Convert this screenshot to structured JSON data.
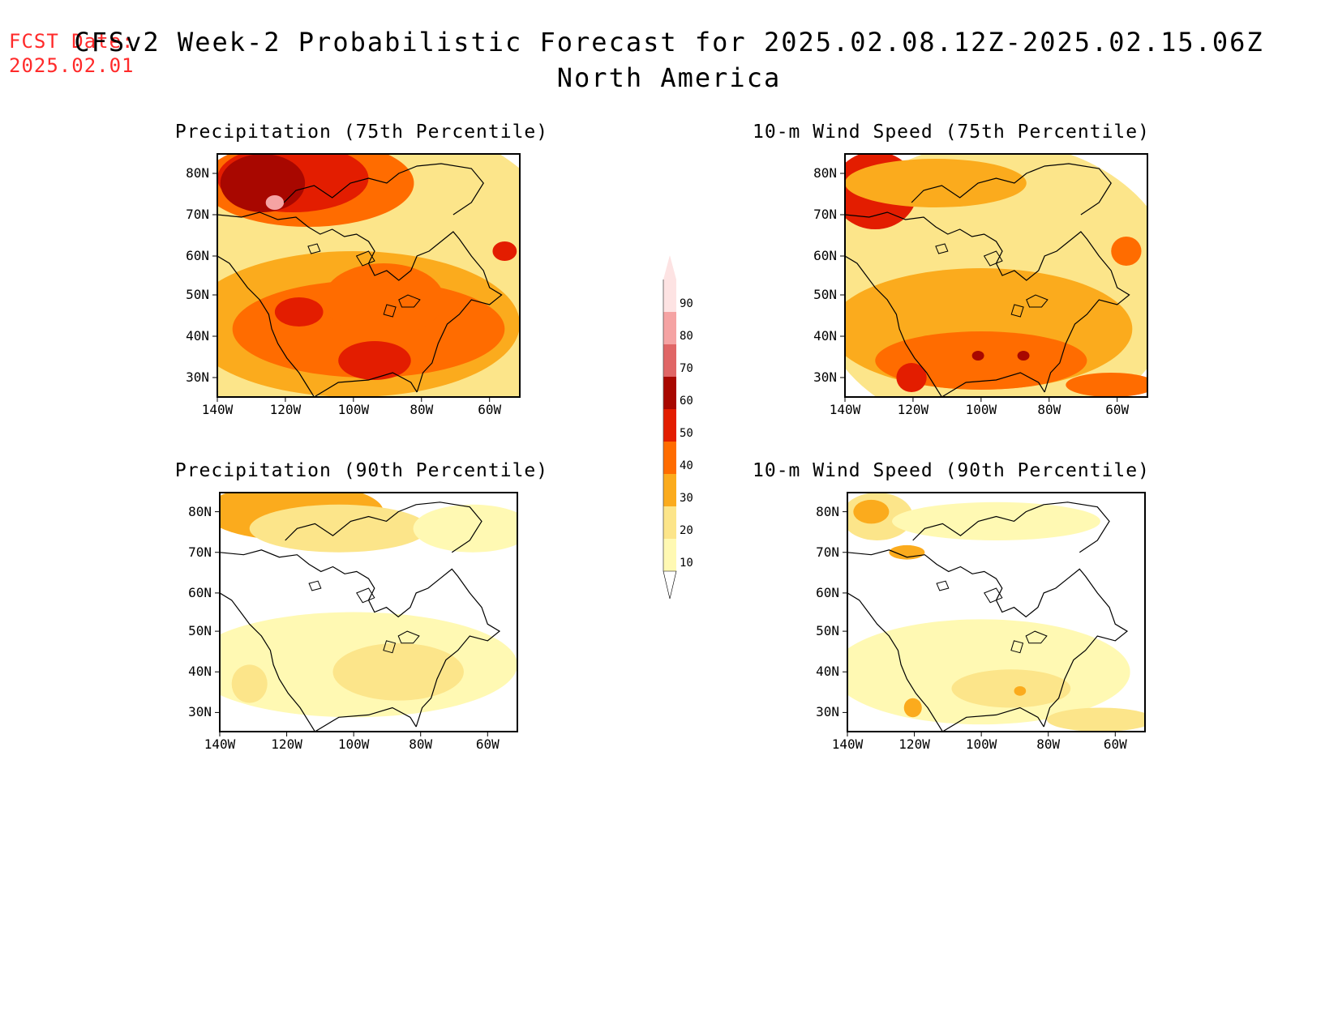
{
  "fcst_date": {
    "label": "FCST Date:",
    "value": "2025.02.01"
  },
  "title": {
    "line1": "CFSv2 Week-2 Probabilistic Forecast for 2025.02.08.12Z-2025.02.15.06Z",
    "line2": "North America"
  },
  "colors": {
    "c10": "#fff9b3",
    "c20": "#fce58a",
    "c30": "#fbab1d",
    "c40": "#ff6c00",
    "c50": "#e31d00",
    "c60": "#a80700",
    "c70": "#e06666",
    "c80": "#f5a3a3",
    "c90": "#fde3e3"
  },
  "lat_ticks": [
    "80N",
    "70N",
    "60N",
    "50N",
    "40N",
    "30N"
  ],
  "lon_ticks": [
    "140W",
    "120W",
    "100W",
    "80W",
    "60W"
  ],
  "panels": [
    {
      "id": "precip75",
      "title": "Precipitation (75th Percentile)"
    },
    {
      "id": "wind75",
      "title": "10-m Wind Speed (75th Percentile)"
    },
    {
      "id": "precip90",
      "title": "Precipitation (90th Percentile)"
    },
    {
      "id": "wind90",
      "title": "10-m Wind Speed (90th Percentile)"
    }
  ],
  "colorbar": {
    "labels": [
      "90",
      "80",
      "70",
      "60",
      "50",
      "40",
      "30",
      "20",
      "10"
    ]
  }
}
